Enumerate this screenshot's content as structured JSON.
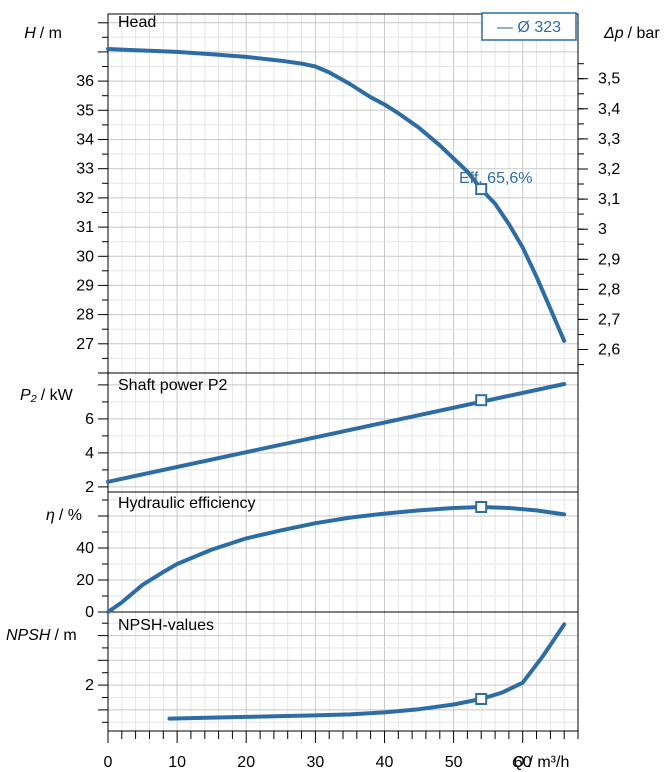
{
  "chart_data": {
    "type": "line",
    "legend": {
      "label": "— Ø 323",
      "placement": "top-right"
    },
    "color": "#2e6da4",
    "x": {
      "label_symbol": "Q",
      "label_unit": "/ m³/h",
      "range": [
        0,
        68
      ],
      "ticks": [
        0,
        10,
        20,
        30,
        40,
        50,
        60
      ],
      "tick_labels": [
        "0",
        "10",
        "20",
        "30",
        "40",
        "50",
        "60"
      ]
    },
    "panels": [
      {
        "id": "head",
        "title": "Head",
        "ylabel_symbol": "H",
        "ylabel_unit": "/ m",
        "ylim": [
          26,
          38.3
        ],
        "yticks": [
          27,
          28,
          29,
          30,
          31,
          32,
          33,
          34,
          35,
          36
        ],
        "secondary_axis": {
          "label_symbol": "Δp",
          "label_unit": "/ bar",
          "unit_per_primary": 0.097,
          "ticks": [
            2.6,
            2.7,
            2.8,
            2.9,
            3.0,
            3.1,
            3.2,
            3.3,
            3.4,
            3.5
          ],
          "tick_labels": [
            "2,6",
            "2,7",
            "2,8",
            "2,9",
            "3",
            "3,1",
            "3,2",
            "3,3",
            "3,4",
            "3,5"
          ]
        },
        "series": [
          {
            "x": [
              0,
              5,
              10,
              15,
              20,
              25,
              28,
              30,
              32,
              35,
              38,
              40,
              42,
              45,
              48,
              50,
              52,
              54,
              56,
              58,
              60,
              62,
              64,
              66
            ],
            "y": [
              37.1,
              37.05,
              37.0,
              36.92,
              36.83,
              36.7,
              36.6,
              36.5,
              36.3,
              35.9,
              35.45,
              35.2,
              34.9,
              34.4,
              33.8,
              33.35,
              32.9,
              32.3,
              31.8,
              31.1,
              30.3,
              29.3,
              28.2,
              27.1
            ]
          }
        ],
        "operating_point": {
          "x": 54,
          "y": 32.3,
          "label": "Eff.  65,6%"
        }
      },
      {
        "id": "power",
        "title": "Shaft power P2",
        "ylabel_symbol": "P₂",
        "ylabel_unit": "/ kW",
        "ylim": [
          1.7,
          8.7
        ],
        "yticks": [
          2,
          4,
          6
        ],
        "series": [
          {
            "x": [
              0,
              66
            ],
            "y": [
              2.3,
              8.05
            ]
          }
        ],
        "operating_point": {
          "x": 54,
          "y": 7.1
        }
      },
      {
        "id": "efficiency",
        "title": "Hydraulic efficiency",
        "ylabel_symbol": "η",
        "ylabel_unit": "/ %",
        "ylim": [
          0,
          75
        ],
        "yticks": [
          0,
          20,
          40
        ],
        "series": [
          {
            "x": [
              0,
              2,
              5,
              8,
              10,
              15,
              20,
              25,
              30,
              35,
              40,
              45,
              50,
              54,
              58,
              62,
              66
            ],
            "y": [
              0,
              6,
              17,
              25,
              30,
              39,
              46,
              51,
              55.5,
              59,
              61.5,
              63.5,
              65,
              65.6,
              65,
              63.5,
              61
            ]
          }
        ],
        "operating_point": {
          "x": 54,
          "y": 65.6
        }
      },
      {
        "id": "npsh",
        "title": "NPSH-values",
        "ylabel_symbol": "NPSH",
        "ylabel_unit": "/ m",
        "ylim": [
          0.15,
          4.95
        ],
        "yticks": [
          2
        ],
        "series": [
          {
            "x": [
              8.9,
              15,
              20,
              25,
              30,
              35,
              40,
              45,
              50,
              54,
              57,
              60,
              63,
              66
            ],
            "y": [
              0.65,
              0.69,
              0.72,
              0.75,
              0.78,
              0.82,
              0.9,
              1.03,
              1.22,
              1.44,
              1.7,
              2.1,
              3.2,
              4.45
            ]
          }
        ],
        "operating_point": {
          "x": 54,
          "y": 1.44
        }
      }
    ]
  }
}
